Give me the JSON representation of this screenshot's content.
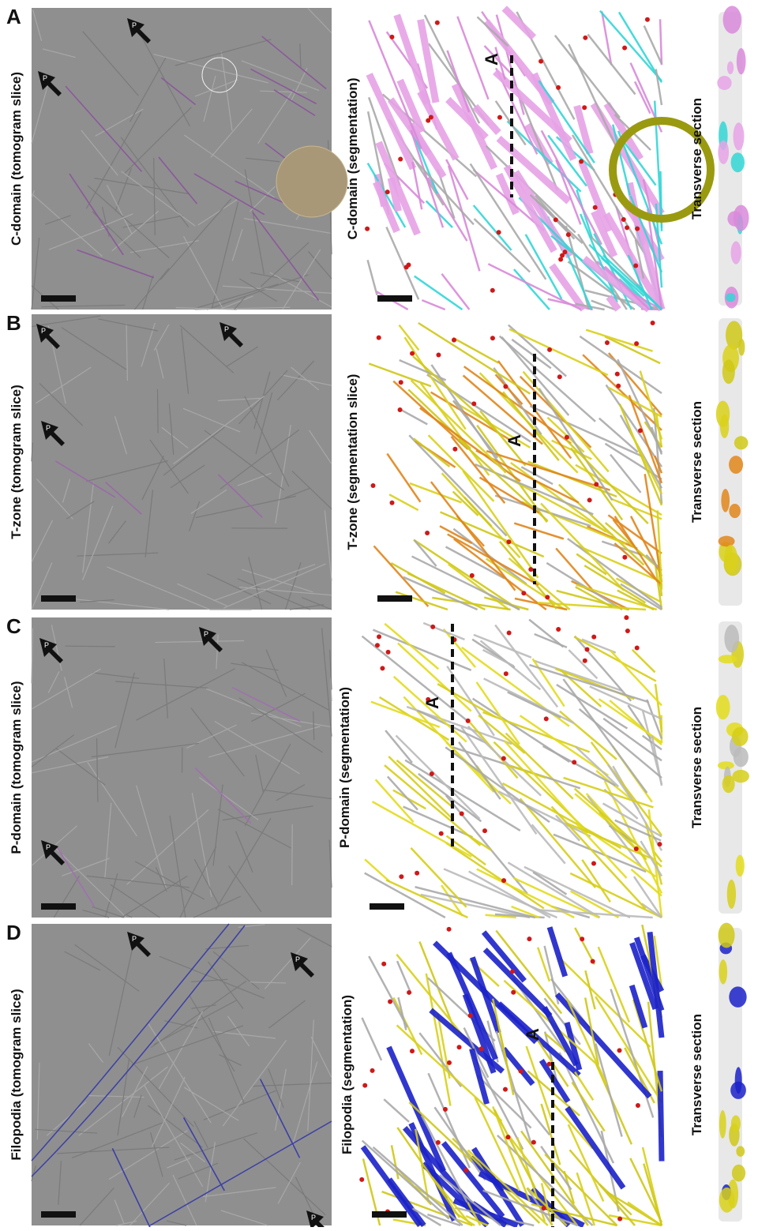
{
  "panels": [
    {
      "letter": "A",
      "tomogram_label": "C-domain (tomogram slice)",
      "tomogram_arrow_labels": [
        "P",
        "P"
      ],
      "segmentation_label": "C-domain (segmentation)",
      "segmentation_marker": "A",
      "transverse_label": "Transverse section"
    },
    {
      "letter": "B",
      "tomogram_label": "T-zone (tomogram slice)",
      "tomogram_arrow_labels": [
        "P",
        "P",
        "P"
      ],
      "segmentation_label": "T-zone (segmentation slice)",
      "segmentation_marker": "A",
      "transverse_label": "Transverse section"
    },
    {
      "letter": "C",
      "tomogram_label": "P-domain (tomogram slice)",
      "tomogram_arrow_labels": [
        "P",
        "P",
        "P"
      ],
      "segmentation_label": "P-domain (segmentation)",
      "segmentation_marker": "A",
      "transverse_label": "Transverse section"
    },
    {
      "letter": "D",
      "tomogram_label": "Filopodia (tomogram slice)",
      "tomogram_arrow_labels": [
        "P",
        "P",
        "P"
      ],
      "segmentation_label": "Filopodia (segmentation)",
      "segmentation_marker": "A",
      "transverse_label": "Transverse section"
    }
  ]
}
